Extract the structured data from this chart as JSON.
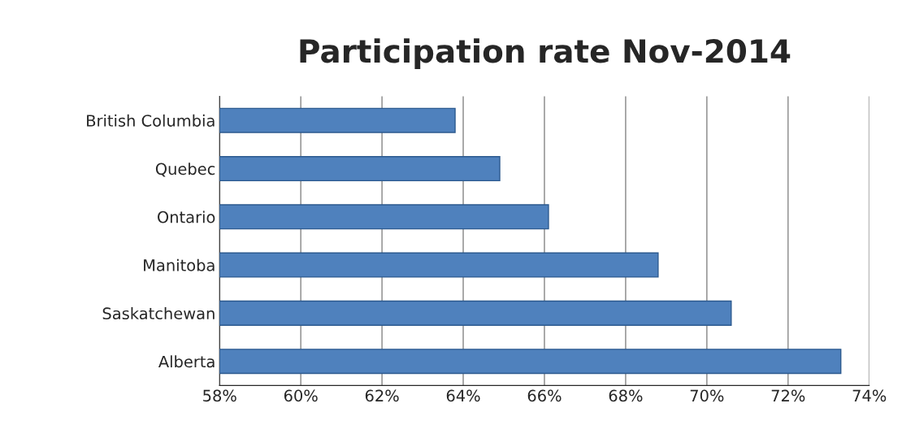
{
  "chart_data": {
    "type": "bar",
    "orientation": "horizontal",
    "title": "Participation rate Nov-2014",
    "categories": [
      "British Columbia",
      "Quebec",
      "Ontario",
      "Manitoba",
      "Saskatchewan",
      "Alberta"
    ],
    "values": [
      63.8,
      64.9,
      66.1,
      68.8,
      70.6,
      73.3
    ],
    "color": "#4f81bd",
    "xlim": [
      58,
      74
    ],
    "xticks": [
      {
        "value": 58,
        "label": "58%"
      },
      {
        "value": 60,
        "label": "60%"
      },
      {
        "value": 62,
        "label": "62%"
      },
      {
        "value": 64,
        "label": "64%"
      },
      {
        "value": 66,
        "label": "66%"
      },
      {
        "value": 68,
        "label": "68%"
      },
      {
        "value": 70,
        "label": "70%"
      },
      {
        "value": 72,
        "label": "72%"
      },
      {
        "value": 74,
        "label": "74%"
      }
    ],
    "grid": "x"
  }
}
